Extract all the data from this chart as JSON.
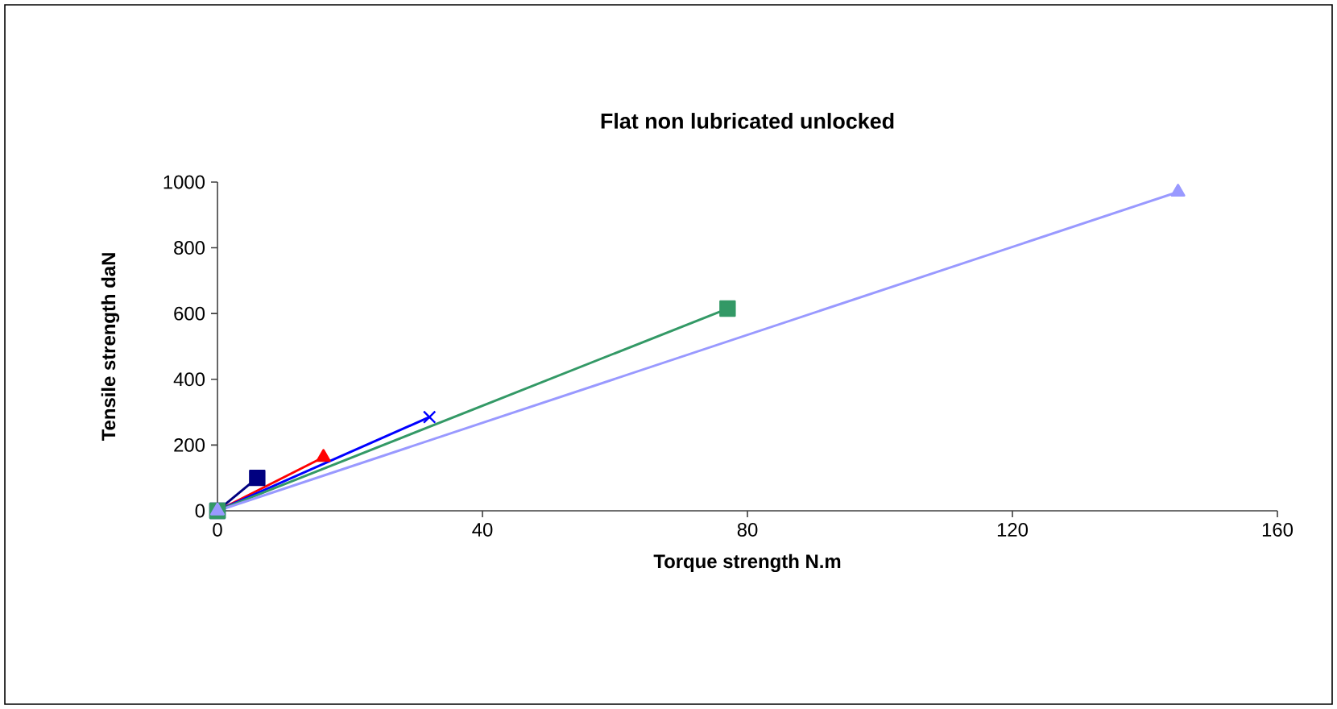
{
  "chart_data": {
    "type": "line",
    "title": "Flat non lubricated unlocked",
    "xlabel": "Torque strength N.m",
    "ylabel": "Tensile strength daN",
    "xlim": [
      0,
      160
    ],
    "xticks": [
      0,
      40,
      80,
      120,
      160
    ],
    "ylim": [
      0,
      1000
    ],
    "yticks": [
      0,
      200,
      400,
      600,
      800,
      1000
    ],
    "grid": false,
    "line_style": "solid",
    "series": [
      {
        "color": "#000080",
        "marker": "square",
        "x": [
          0,
          6
        ],
        "values": [
          0,
          100
        ]
      },
      {
        "color": "#ff0000",
        "marker": "triangle",
        "x": [
          0,
          16
        ],
        "values": [
          0,
          163
        ]
      },
      {
        "color": "#0000ff",
        "marker": "cross",
        "x": [
          0,
          32
        ],
        "values": [
          0,
          285
        ]
      },
      {
        "color": "#339966",
        "marker": "square",
        "x": [
          0,
          77
        ],
        "values": [
          0,
          615
        ]
      },
      {
        "color": "#9999ff",
        "marker": "triangle",
        "x": [
          0,
          145
        ],
        "values": [
          0,
          970
        ]
      }
    ]
  }
}
